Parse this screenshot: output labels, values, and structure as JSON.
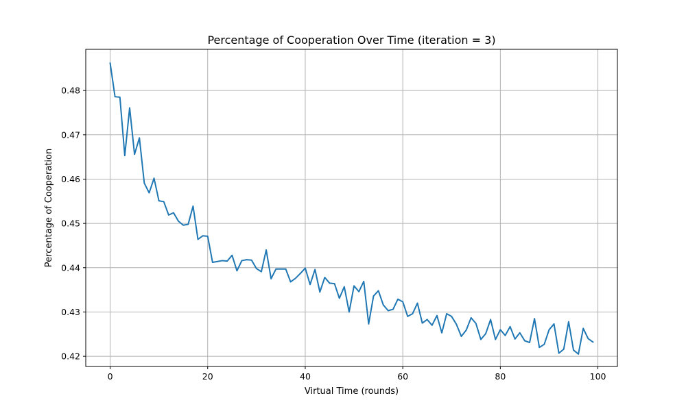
{
  "chart_data": {
    "type": "line",
    "title": "Percentage of Cooperation Over Time (iteration = 3)",
    "xlabel": "Virtual Time (rounds)",
    "ylabel": "Percentage of Cooperation",
    "xlim": [
      -5,
      104
    ],
    "ylim": [
      0.4177,
      0.4893
    ],
    "xticks": [
      0,
      20,
      40,
      60,
      80,
      100
    ],
    "xtick_labels": [
      "0",
      "20",
      "40",
      "60",
      "80",
      "100"
    ],
    "yticks": [
      0.42,
      0.43,
      0.44,
      0.45,
      0.46,
      0.47,
      0.48
    ],
    "ytick_labels": [
      "0.42",
      "0.43",
      "0.44",
      "0.45",
      "0.46",
      "0.47",
      "0.48"
    ],
    "grid": true,
    "legend": "none",
    "series": [
      {
        "color": "#1f77b4",
        "x": [
          0,
          1,
          2,
          3,
          4,
          5,
          6,
          7,
          8,
          9,
          10,
          11,
          12,
          13,
          14,
          15,
          16,
          17,
          18,
          19,
          20,
          21,
          22,
          23,
          24,
          25,
          26,
          27,
          28,
          29,
          30,
          31,
          32,
          33,
          34,
          35,
          36,
          37,
          38,
          39,
          40,
          41,
          42,
          43,
          44,
          45,
          46,
          47,
          48,
          49,
          50,
          51,
          52,
          53,
          54,
          55,
          56,
          57,
          58,
          59,
          60,
          61,
          62,
          63,
          64,
          65,
          66,
          67,
          68,
          69,
          70,
          71,
          72,
          73,
          74,
          75,
          76,
          77,
          78,
          79,
          80,
          81,
          82,
          83,
          84,
          85,
          86,
          87,
          88,
          89,
          90,
          91,
          92,
          93,
          94,
          95,
          96,
          97,
          98,
          99
        ],
        "values": [
          0.4862,
          0.4786,
          0.4785,
          0.4653,
          0.4761,
          0.4656,
          0.4693,
          0.4591,
          0.4569,
          0.4602,
          0.4551,
          0.4549,
          0.4519,
          0.4524,
          0.4505,
          0.4496,
          0.4498,
          0.4539,
          0.4464,
          0.4472,
          0.4471,
          0.4412,
          0.4414,
          0.4416,
          0.4415,
          0.4428,
          0.4393,
          0.4416,
          0.4418,
          0.4417,
          0.4398,
          0.4391,
          0.444,
          0.4375,
          0.4397,
          0.4397,
          0.4397,
          0.4368,
          0.4376,
          0.4387,
          0.4399,
          0.4362,
          0.4396,
          0.4345,
          0.4378,
          0.4365,
          0.4364,
          0.4331,
          0.4357,
          0.43,
          0.4359,
          0.4346,
          0.4369,
          0.4273,
          0.4336,
          0.4348,
          0.4316,
          0.4303,
          0.4306,
          0.4329,
          0.4323,
          0.429,
          0.4296,
          0.432,
          0.4275,
          0.4283,
          0.427,
          0.4292,
          0.4253,
          0.4296,
          0.429,
          0.4272,
          0.4245,
          0.4259,
          0.4287,
          0.4274,
          0.4238,
          0.4251,
          0.4283,
          0.4238,
          0.426,
          0.4247,
          0.4267,
          0.4239,
          0.4253,
          0.4235,
          0.4231,
          0.4285,
          0.422,
          0.4227,
          0.426,
          0.4273,
          0.4207,
          0.4216,
          0.4278,
          0.4214,
          0.4205,
          0.4263,
          0.424,
          0.4232
        ]
      }
    ]
  }
}
